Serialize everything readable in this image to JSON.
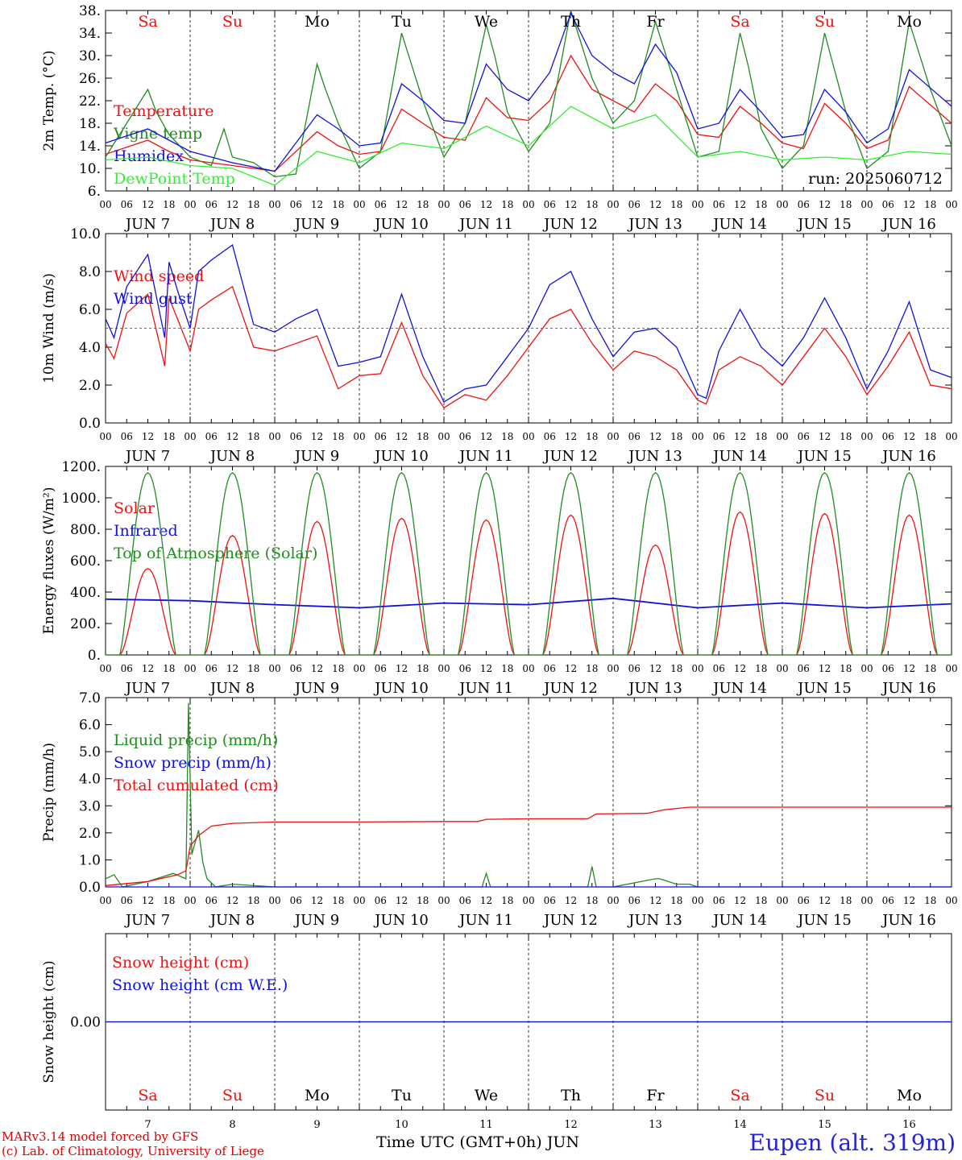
{
  "run_label": "run: 2025060712",
  "day_headers": [
    "Sa",
    "Su",
    "Mo",
    "Tu",
    "We",
    "Th",
    "Fr",
    "Sa",
    "Su",
    "Mo"
  ],
  "weekend_color": "#ee1111",
  "hour_ticks": [
    "00",
    "06",
    "12",
    "18"
  ],
  "date_labels": [
    "JUN  7",
    "JUN  8",
    "JUN  9",
    "JUN 10",
    "JUN 11",
    "JUN 12",
    "JUN 13",
    "JUN 14",
    "JUN 15",
    "JUN 16"
  ],
  "bottom_days": [
    "7",
    "8",
    "9",
    "10",
    "11",
    "12",
    "13",
    "14",
    "15",
    "16"
  ],
  "footer": {
    "model": "MARv3.14 model forced by GFS",
    "copyright": "(c) Lab. of Climatology, University of Liege",
    "xlabel": "Time UTC (GMT+0h) JUN",
    "location": "Eupen (alt. 319m)"
  },
  "chart_data": [
    {
      "type": "line",
      "ylabel": "2m Temp. (°C)",
      "ylim": [
        6,
        38
      ],
      "yticks": [
        "6.",
        "10.",
        "14.",
        "18.",
        "22.",
        "26.",
        "30.",
        "34.",
        "38."
      ],
      "x_unit": "days from JUN 7 00 UTC",
      "series": [
        {
          "name": "Temperature",
          "color": "#ee1111",
          "x": [
            0,
            0.5,
            0.75,
            1,
            1.25,
            1.5,
            2,
            2.5,
            2.75,
            3,
            3.25,
            3.5,
            3.75,
            4,
            4.25,
            4.5,
            4.75,
            5,
            5.25,
            5.5,
            5.75,
            6,
            6.25,
            6.5,
            6.75,
            7,
            7.25,
            7.5,
            7.75,
            8,
            8.25,
            8.5,
            8.75,
            9,
            9.25,
            9.5,
            10
          ],
          "y": [
            12.5,
            15,
            13,
            11.5,
            11,
            10.5,
            9.5,
            16.5,
            14,
            12.5,
            13,
            20.5,
            18,
            15.5,
            15,
            22.5,
            19,
            18.5,
            22,
            30,
            24,
            22,
            20,
            25,
            22,
            16,
            15.5,
            21,
            18,
            14.5,
            13.5,
            21.5,
            18,
            13.5,
            15,
            24.5,
            18
          ]
        },
        {
          "name": "Vigne temp",
          "color": "#228b22",
          "x": [
            0,
            0.5,
            0.6,
            0.75,
            1,
            1.25,
            1.4,
            1.5,
            1.75,
            2,
            2.25,
            2.5,
            2.6,
            2.75,
            3,
            3.25,
            3.5,
            3.75,
            4,
            4.25,
            4.5,
            4.6,
            4.75,
            5,
            5.25,
            5.5,
            5.75,
            6,
            6.25,
            6.5,
            6.75,
            7,
            7.25,
            7.5,
            7.6,
            7.75,
            8,
            8.25,
            8.5,
            8.75,
            9,
            9.25,
            9.5,
            9.75,
            10
          ],
          "y": [
            12,
            24,
            20,
            16,
            12,
            10.5,
            17,
            12,
            11,
            8.5,
            9,
            28.5,
            24,
            18,
            10,
            13,
            34,
            22,
            12,
            18,
            35.5,
            30,
            20,
            13,
            18,
            38,
            26,
            18,
            22,
            36,
            24,
            12,
            13,
            34,
            28,
            17,
            10,
            14,
            34,
            20,
            10,
            13,
            36,
            24,
            14
          ]
        },
        {
          "name": "Humidex",
          "color": "#1111dd",
          "x": [
            0,
            0.5,
            0.75,
            1,
            1.25,
            1.5,
            2,
            2.5,
            2.75,
            3,
            3.25,
            3.5,
            3.75,
            4,
            4.25,
            4.5,
            4.75,
            5,
            5.25,
            5.5,
            5.75,
            6,
            6.25,
            6.5,
            6.75,
            7,
            7.25,
            7.5,
            7.75,
            8,
            8.25,
            8.5,
            8.75,
            9,
            9.25,
            9.5,
            10
          ],
          "y": [
            14.5,
            17,
            15,
            13,
            12,
            11,
            9.5,
            19.5,
            17,
            14,
            14.5,
            25,
            22,
            18.5,
            18,
            28.5,
            24,
            22,
            27,
            37.5,
            30,
            27,
            25,
            32,
            27,
            17,
            18,
            24,
            20,
            15.5,
            16,
            24,
            20,
            14.5,
            17,
            27.5,
            21
          ]
        },
        {
          "name": "DewPoint Temp",
          "color": "#33ee33",
          "x": [
            0,
            0.5,
            1,
            1.5,
            2,
            2.5,
            3,
            3.5,
            4,
            4.5,
            5,
            5.5,
            6,
            6.5,
            7,
            7.5,
            8,
            8.5,
            9,
            9.5,
            10
          ],
          "y": [
            11.5,
            12,
            10.5,
            10,
            7,
            13,
            11,
            14.5,
            13.5,
            17.5,
            14,
            21,
            17,
            19.5,
            12,
            13,
            11.5,
            12,
            11.5,
            13,
            12.5
          ]
        }
      ]
    },
    {
      "type": "line",
      "ylabel": "10m Wind (m/s)",
      "ylim": [
        0,
        10
      ],
      "yticks": [
        "0.0",
        "2.0",
        "4.0",
        "6.0",
        "8.0",
        "10.0"
      ],
      "reference_line": 5,
      "series": [
        {
          "name": "Wind speed",
          "color": "#ee1111",
          "x": [
            0,
            0.1,
            0.25,
            0.5,
            0.7,
            0.75,
            0.85,
            1,
            1.1,
            1.25,
            1.5,
            1.75,
            2,
            2.25,
            2.5,
            2.75,
            3,
            3.25,
            3.5,
            3.75,
            4,
            4.25,
            4.5,
            4.75,
            5,
            5.25,
            5.5,
            5.75,
            6,
            6.25,
            6.5,
            6.75,
            7,
            7.1,
            7.25,
            7.5,
            7.75,
            8,
            8.25,
            8.5,
            8.75,
            9,
            9.25,
            9.5,
            9.75,
            10
          ],
          "y": [
            4.2,
            3.4,
            5.8,
            6.8,
            3.0,
            6.6,
            5.5,
            3.8,
            6.0,
            6.5,
            7.2,
            4.0,
            3.8,
            4.2,
            4.6,
            1.8,
            2.5,
            2.6,
            5.3,
            2.5,
            0.8,
            1.5,
            1.2,
            2.5,
            4.0,
            5.5,
            6.0,
            4.2,
            2.8,
            3.8,
            3.5,
            2.8,
            1.2,
            1.0,
            2.8,
            3.5,
            3.0,
            2.0,
            3.5,
            5.0,
            3.5,
            1.5,
            3.0,
            4.8,
            2.0,
            1.8
          ]
        },
        {
          "name": "Wind gust",
          "color": "#1111dd",
          "x": [
            0,
            0.1,
            0.25,
            0.5,
            0.7,
            0.75,
            0.85,
            1,
            1.1,
            1.25,
            1.5,
            1.75,
            2,
            2.25,
            2.5,
            2.75,
            3,
            3.25,
            3.5,
            3.75,
            4,
            4.25,
            4.5,
            4.75,
            5,
            5.25,
            5.5,
            5.75,
            6,
            6.25,
            6.5,
            6.75,
            7,
            7.1,
            7.25,
            7.5,
            7.75,
            8,
            8.25,
            8.5,
            8.75,
            9,
            9.25,
            9.5,
            9.75,
            10
          ],
          "y": [
            5.5,
            4.5,
            7.2,
            8.9,
            4.5,
            8.5,
            7.0,
            5.0,
            8.0,
            8.6,
            9.4,
            5.2,
            4.8,
            5.5,
            6.0,
            3.0,
            3.2,
            3.5,
            6.8,
            3.5,
            1.1,
            1.8,
            2.0,
            3.5,
            5.0,
            7.3,
            8.0,
            5.5,
            3.5,
            4.8,
            5.0,
            4.0,
            1.5,
            1.3,
            3.8,
            6.0,
            4.0,
            3.0,
            4.5,
            6.6,
            4.5,
            1.8,
            3.8,
            6.4,
            2.8,
            2.4
          ]
        }
      ]
    },
    {
      "type": "line",
      "ylabel": "Energy fluxes (W/m²)",
      "ylim": [
        0,
        1200
      ],
      "yticks": [
        "0.",
        "200.",
        "400.",
        "600.",
        "800.",
        "1000.",
        "1200."
      ],
      "series": [
        {
          "name": "Solar",
          "color": "#ee1111",
          "daily_peaks": [
            550,
            760,
            850,
            870,
            860,
            890,
            700,
            910,
            900,
            890
          ]
        },
        {
          "name": "Infrared",
          "color": "#1111dd",
          "x": [
            0,
            1,
            2,
            3,
            4,
            5,
            6,
            7,
            8,
            9,
            10
          ],
          "y": [
            355,
            345,
            320,
            300,
            330,
            320,
            360,
            300,
            330,
            300,
            325
          ]
        },
        {
          "name": "Top of Atmosphere (Solar)",
          "color": "#228b22",
          "daily_peaks": [
            1160,
            1160,
            1160,
            1160,
            1160,
            1160,
            1160,
            1160,
            1160,
            1160,
            1160
          ]
        }
      ]
    },
    {
      "type": "line",
      "ylabel": "Precip (mm/h)",
      "ylim": [
        0,
        7
      ],
      "yticks": [
        "0.0",
        "1.0",
        "2.0",
        "3.0",
        "4.0",
        "5.0",
        "6.0",
        "7.0"
      ],
      "series": [
        {
          "name": "Liquid precip (mm/h)",
          "color": "#228b22",
          "x": [
            0,
            0.1,
            0.2,
            0.5,
            0.8,
            0.95,
            0.98,
            1.02,
            1.1,
            1.15,
            1.2,
            1.3,
            1.5,
            2,
            3,
            4,
            4.45,
            4.5,
            4.55,
            5,
            5.7,
            5.75,
            5.8,
            6,
            6.5,
            6.55,
            6.75,
            6.9,
            7,
            10
          ],
          "y": [
            0.3,
            0.45,
            0,
            0.2,
            0.5,
            0.3,
            6.8,
            1.2,
            2.1,
            0.9,
            0.3,
            0,
            0.1,
            0,
            0,
            0,
            0,
            0.5,
            0,
            0,
            0,
            0.75,
            0,
            0,
            0.3,
            0.3,
            0.1,
            0.1,
            0,
            0
          ]
        },
        {
          "name": "Snow precip (mm/h)",
          "color": "#1111dd",
          "x": [
            0,
            10
          ],
          "y": [
            0,
            0
          ]
        },
        {
          "name": "Total cumulated (cm)",
          "color": "#ee1111",
          "x": [
            0,
            0.5,
            0.85,
            0.95,
            1,
            1.1,
            1.25,
            1.5,
            2,
            3,
            4,
            4.4,
            4.5,
            5,
            5.7,
            5.8,
            6.4,
            6.6,
            6.9,
            7,
            10
          ],
          "y": [
            0.05,
            0.2,
            0.45,
            0.6,
            1.5,
            1.9,
            2.25,
            2.35,
            2.4,
            2.4,
            2.42,
            2.42,
            2.5,
            2.52,
            2.52,
            2.7,
            2.72,
            2.85,
            2.95,
            2.95,
            2.95
          ]
        }
      ]
    },
    {
      "type": "line",
      "ylabel": "Snow height (cm)",
      "yticks": [
        "0.00"
      ],
      "series": [
        {
          "name": "Snow height (cm)",
          "color": "#ee1111",
          "x": [
            0,
            10
          ],
          "y": [
            0,
            0
          ]
        },
        {
          "name": "Snow height (cm W.E.)",
          "color": "#1111dd",
          "x": [
            0,
            10
          ],
          "y": [
            0,
            0
          ]
        }
      ]
    }
  ]
}
